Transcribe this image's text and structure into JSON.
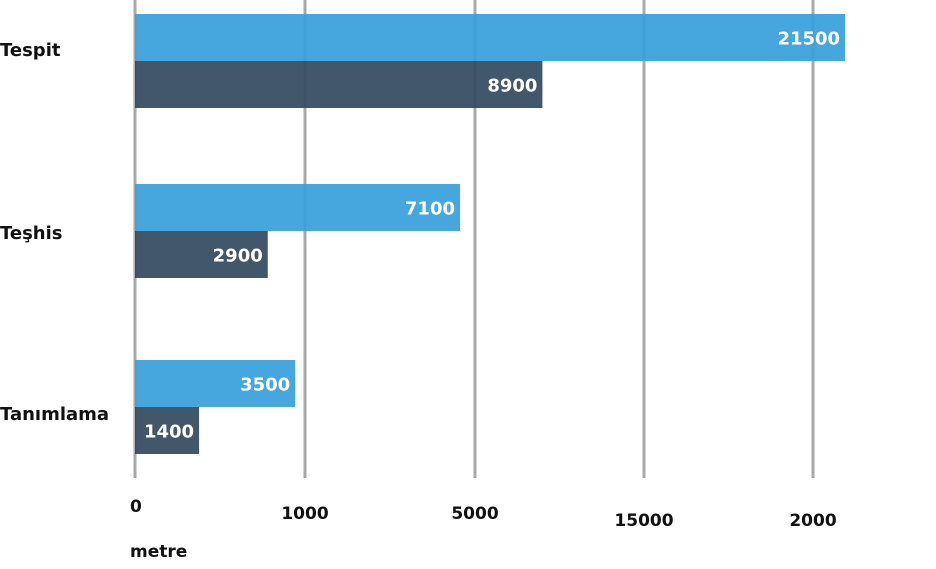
{
  "chart_data": {
    "type": "bar",
    "orientation": "horizontal",
    "categories": [
      "Tespit",
      "Teşhis",
      "Tanımlama"
    ],
    "series": [
      {
        "values": [
          21500,
          7100,
          3500
        ],
        "color": "#37a0da"
      },
      {
        "values": [
          8900,
          2900,
          1400
        ],
        "color": "#354a60"
      }
    ],
    "x_tick_labels": [
      "0",
      "1000",
      "5000",
      "15000",
      "2000"
    ],
    "xlabel": "metre",
    "ylabel": "",
    "grid": true,
    "grid_color": "#a9a9a9"
  }
}
